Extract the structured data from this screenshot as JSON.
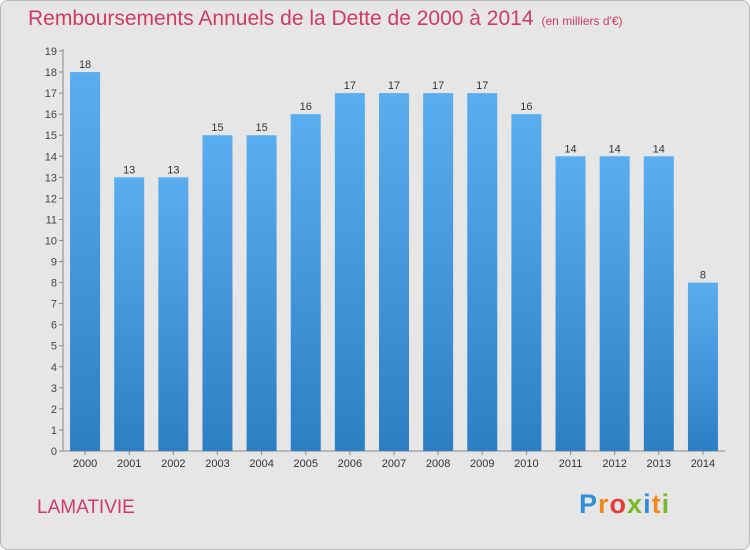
{
  "title": "Remboursements Annuels de la Dette de 2000 à 2014",
  "unit_note": "(en milliers d'€)",
  "town": "LAMATIVIE",
  "logo": {
    "text": "Proxiti",
    "letters": [
      "P",
      "r",
      "o",
      "x",
      "i",
      "t",
      "i"
    ],
    "colors": [
      "#2f8fd8",
      "#f08a1c",
      "#e83a3a",
      "#79b828",
      "#2f8fd8",
      "#f08a1c",
      "#79b828"
    ]
  },
  "colors": {
    "bar": "#3a91d6",
    "bar_light": "#5aaef0",
    "accent": "#d03a66",
    "background": "#e6e6e6"
  },
  "chart_data": {
    "type": "bar",
    "title": "Remboursements Annuels de la Dette de 2000 à 2014",
    "ylabel": "en milliers d'€",
    "xlabel": "",
    "categories": [
      "2000",
      "2001",
      "2002",
      "2003",
      "2004",
      "2005",
      "2006",
      "2007",
      "2008",
      "2009",
      "2010",
      "2011",
      "2012",
      "2013",
      "2014"
    ],
    "values": [
      18,
      13,
      13,
      15,
      15,
      16,
      17,
      17,
      17,
      17,
      16,
      14,
      14,
      14,
      8
    ],
    "ylim": [
      0,
      19
    ],
    "yticks": [
      "0",
      "1",
      "2",
      "3",
      "4",
      "5",
      "6",
      "7",
      "8",
      "9",
      "10",
      "11",
      "12",
      "13",
      "14",
      "15",
      "16",
      "17",
      "18",
      "19"
    ],
    "grid": false
  }
}
